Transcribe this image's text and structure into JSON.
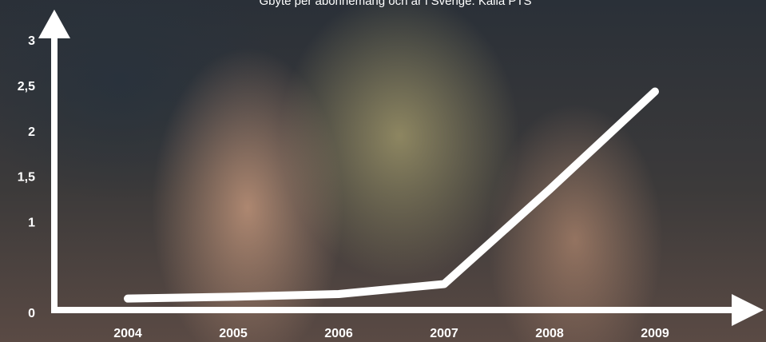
{
  "chart_data": {
    "type": "line",
    "title": "Gbyte per abonnemang och år i Sverige. Källa PTS",
    "categories": [
      "2004",
      "2005",
      "2006",
      "2007",
      "2008",
      "2009"
    ],
    "series": [
      {
        "name": "Gbyte per abonnemang",
        "color": "#ffffff",
        "values": [
          0.17,
          0.19,
          0.22,
          0.33,
          1.37,
          2.45
        ]
      }
    ],
    "ylim": [
      0,
      3
    ],
    "yticks": [
      {
        "value": 0,
        "label": "0"
      },
      1,
      {
        "value": 1.5,
        "label": "1,5"
      },
      2,
      {
        "value": 2.5,
        "label": "2,5"
      },
      3
    ]
  }
}
